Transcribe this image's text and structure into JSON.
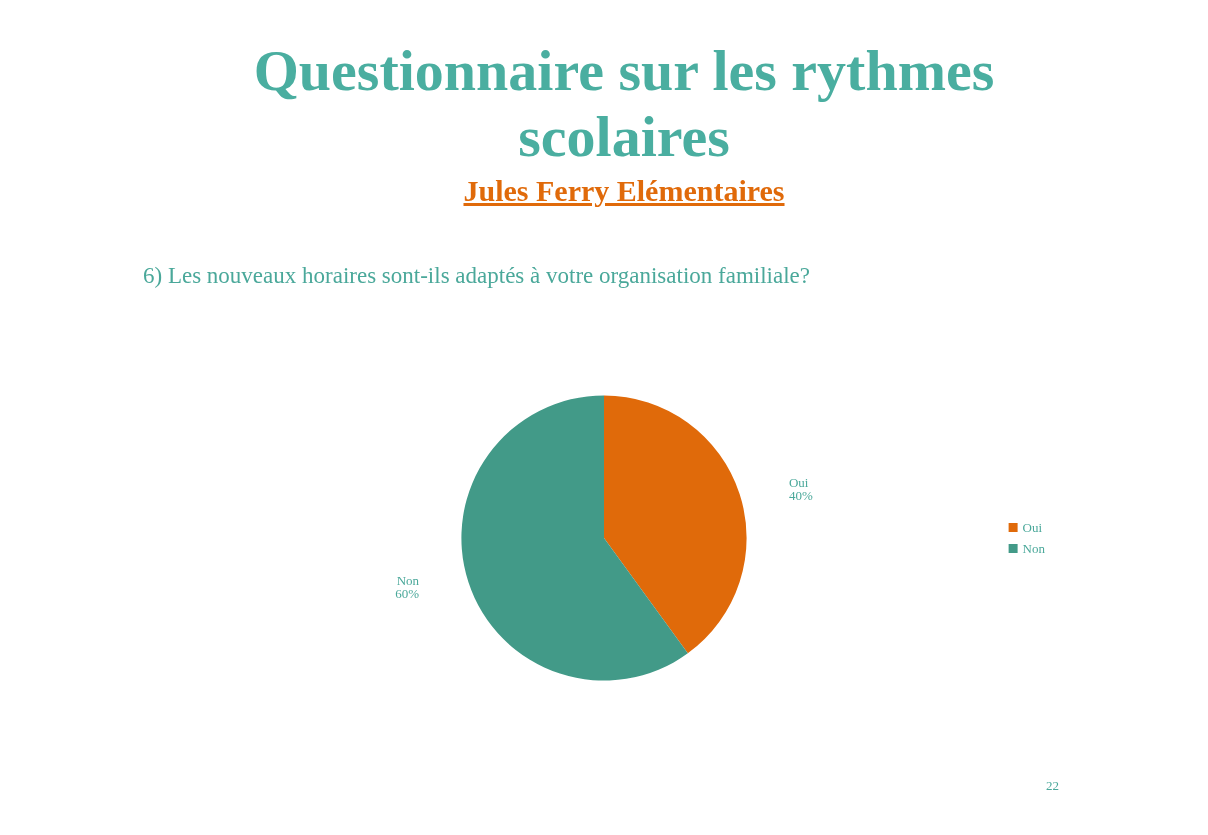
{
  "chart_data": {
    "type": "pie",
    "title": "Questionnaire sur les rythmes scolaires",
    "subtitle": "Jules Ferry Elémentaires",
    "annotations": [
      "6) Les nouveaux horaires sont-ils adaptés à votre organisation familiale?",
      "22"
    ],
    "categories": [
      "Oui",
      "Non"
    ],
    "values": [
      40,
      60
    ],
    "value_labels": [
      "40%",
      "60%"
    ],
    "colors": [
      "#e06a0a",
      "#429a88"
    ],
    "legend": "right"
  }
}
